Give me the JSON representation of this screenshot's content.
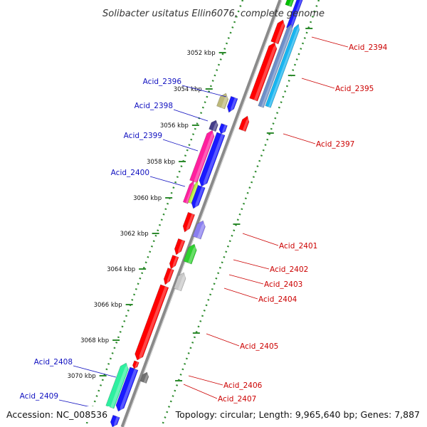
{
  "title": "Solibacter usitatus Ellin6076, complete genome",
  "accession": "Accession: NC_008536",
  "topology": "Topology: circular; Length: 9,965,640 bp; Genes: 7,887",
  "colors": {
    "backbone": "#8a8a8a",
    "ticks": "#2e8b2e",
    "label_left": "#1010c0",
    "label_right": "#cc0000"
  },
  "kbp_labels": [
    "3052 kbp",
    "3054 kbp",
    "3056 kbp",
    "3058 kbp",
    "3060 kbp",
    "3062 kbp",
    "3064 kbp",
    "3066 kbp",
    "3068 kbp",
    "3070 kbp"
  ],
  "genes_left": [
    "Acid_2396",
    "Acid_2398",
    "Acid_2399",
    "Acid_2400",
    "Acid_2408",
    "Acid_2409"
  ],
  "genes_right": [
    "Acid_2394",
    "Acid_2395",
    "Acid_2397",
    "Acid_2401",
    "Acid_2402",
    "Acid_2403",
    "Acid_2404",
    "Acid_2405",
    "Acid_2406",
    "Acid_2407"
  ]
}
